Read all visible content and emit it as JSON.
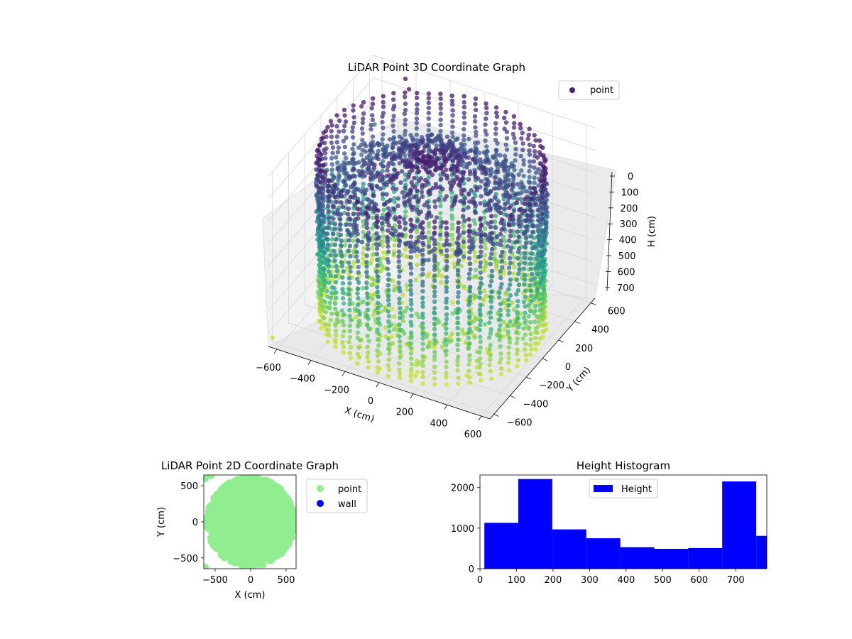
{
  "chart_data": [
    {
      "type": "scatter",
      "projection": "3d",
      "title": "LiDAR Point 3D Coordinate Graph",
      "xlabel": "X (cm)",
      "ylabel": "Y (cm)",
      "zlabel": "H (cm)",
      "x_ticks": [
        "−600",
        "−400",
        "−200",
        "0",
        "200",
        "400",
        "600"
      ],
      "y_ticks": [
        "−600",
        "−400",
        "−200",
        "0",
        "200",
        "400",
        "600"
      ],
      "z_ticks": [
        "0",
        "100",
        "200",
        "300",
        "400",
        "500",
        "600",
        "700"
      ],
      "xlim": [
        -650,
        650
      ],
      "ylim": [
        -650,
        650
      ],
      "zlim": [
        760,
        0
      ],
      "z_inverted": true,
      "colormap": "viridis",
      "legend": {
        "entries": [
          "point"
        ],
        "placement": "top-right"
      },
      "series": [
        {
          "name": "point",
          "color": "#482173",
          "description_shape": "cylindrical wall of radius about 600 cm, heights 0 to 760 cm, plus ceiling points converging toward center"
        }
      ],
      "grid": true
    },
    {
      "type": "scatter",
      "title": "LiDAR Point 2D Coordinate Graph",
      "xlabel": "X (cm)",
      "ylabel": "Y (cm)",
      "x_ticks": [
        "−500",
        "0",
        "500"
      ],
      "y_ticks": [
        "500",
        "0",
        "−500"
      ],
      "xlim": [
        -660,
        640
      ],
      "ylim": [
        -650,
        650
      ],
      "legend": {
        "entries": [
          "point",
          "wall"
        ],
        "placement": "outside-right"
      },
      "series": [
        {
          "name": "point",
          "color": "#90ee90",
          "shape": "filled disk of radius about 600 cm centered near origin"
        },
        {
          "name": "wall",
          "color": "#0000ff",
          "count": 0
        }
      ],
      "grid": false
    },
    {
      "type": "bar",
      "subtype": "histogram",
      "title": "Height Histogram",
      "xlabel": "",
      "ylabel": "",
      "x_ticks": [
        "0",
        "100",
        "200",
        "300",
        "400",
        "500",
        "600",
        "700"
      ],
      "y_ticks": [
        "0",
        "1000",
        "2000"
      ],
      "xlim": [
        0,
        785
      ],
      "ylim": [
        0,
        2310
      ],
      "bin_edges": [
        12,
        105,
        198,
        291,
        384,
        477,
        570,
        663,
        756,
        849
      ],
      "values": [
        1130,
        2210,
        970,
        750,
        530,
        490,
        510,
        2150,
        810
      ],
      "color": "#0000ff",
      "legend": {
        "entries": [
          "Height"
        ],
        "placement": "top-center"
      },
      "grid": false
    }
  ]
}
